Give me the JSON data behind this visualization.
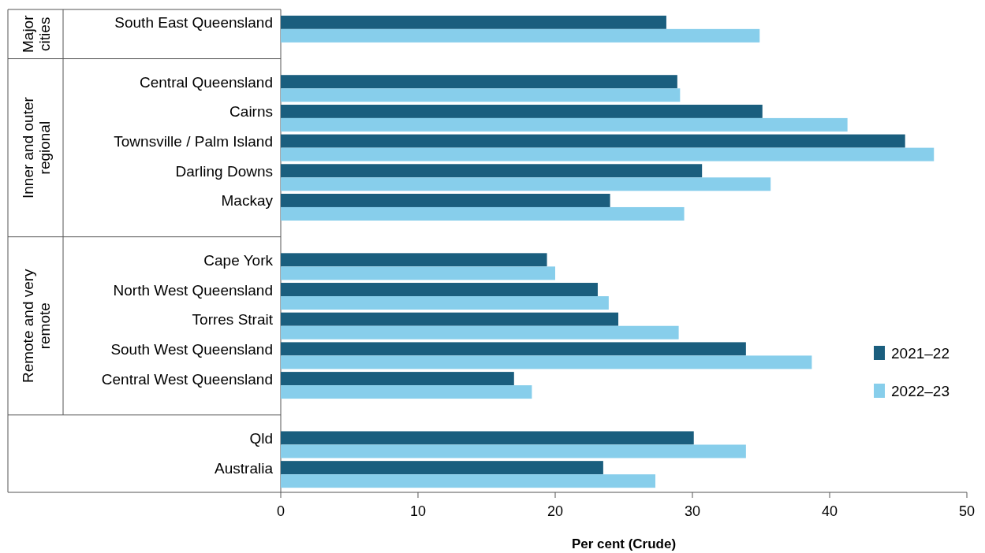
{
  "chart_data": {
    "type": "bar",
    "orientation": "horizontal",
    "xlabel": "Per cent (Crude)",
    "categories": [
      "South East Queensland",
      null,
      "Central Queensland",
      "Cairns",
      "Townsville / Palm Island",
      "Darling Downs",
      "Mackay",
      null,
      "Cape York",
      "North West Queensland",
      "Torres Strait",
      "South West Queensland",
      "Central West Queensland",
      null,
      "Qld",
      "Australia"
    ],
    "series": [
      {
        "name": "2021–22",
        "color": "#1a5e7e",
        "values": [
          28.1,
          null,
          28.9,
          35.1,
          45.5,
          30.7,
          24.0,
          null,
          19.4,
          23.1,
          24.6,
          33.9,
          17.0,
          null,
          30.1,
          23.5
        ]
      },
      {
        "name": "2022–23",
        "color": "#87ceeb",
        "values": [
          34.9,
          null,
          29.1,
          41.3,
          47.6,
          35.7,
          29.4,
          null,
          20.0,
          23.9,
          29.0,
          38.7,
          18.3,
          null,
          33.9,
          27.3
        ]
      }
    ],
    "annotations": [
      "Major cities",
      "Inner and outer regional",
      "Remote and very remote"
    ],
    "xlim": [
      0,
      50
    ],
    "xticks": [
      0,
      10,
      20,
      30,
      40,
      50
    ],
    "legend": "right"
  }
}
